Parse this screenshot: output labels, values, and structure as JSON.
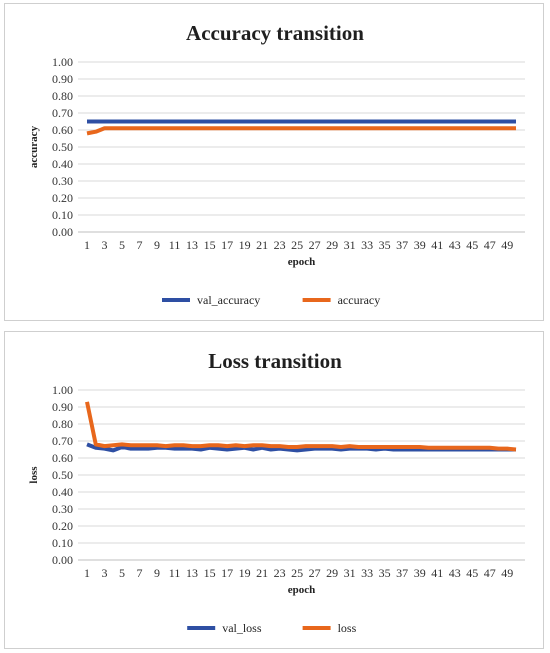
{
  "chart_data": [
    {
      "type": "line",
      "title": "Accuracy transition",
      "xlabel": "epoch",
      "ylabel": "accuracy",
      "ylim": [
        0,
        1
      ],
      "yticks": [
        "0.00",
        "0.10",
        "0.20",
        "0.30",
        "0.40",
        "0.50",
        "0.60",
        "0.70",
        "0.80",
        "0.90",
        "1.00"
      ],
      "x": [
        1,
        2,
        3,
        4,
        5,
        6,
        7,
        8,
        9,
        10,
        11,
        12,
        13,
        14,
        15,
        16,
        17,
        18,
        19,
        20,
        21,
        22,
        23,
        24,
        25,
        26,
        27,
        28,
        29,
        30,
        31,
        32,
        33,
        34,
        35,
        36,
        37,
        38,
        39,
        40,
        41,
        42,
        43,
        44,
        45,
        46,
        47,
        48,
        49,
        50
      ],
      "xticks": [
        "1",
        "3",
        "5",
        "7",
        "9",
        "11",
        "13",
        "15",
        "17",
        "19",
        "21",
        "23",
        "25",
        "27",
        "29",
        "31",
        "33",
        "35",
        "37",
        "39",
        "41",
        "43",
        "45",
        "47",
        "49"
      ],
      "grid": true,
      "legend": "bottom",
      "series": [
        {
          "name": "val_accuracy",
          "color": "#2e4fa3",
          "values": [
            0.65,
            0.65,
            0.65,
            0.65,
            0.65,
            0.65,
            0.65,
            0.65,
            0.65,
            0.65,
            0.65,
            0.65,
            0.65,
            0.65,
            0.65,
            0.65,
            0.65,
            0.65,
            0.65,
            0.65,
            0.65,
            0.65,
            0.65,
            0.65,
            0.65,
            0.65,
            0.65,
            0.65,
            0.65,
            0.65,
            0.65,
            0.65,
            0.65,
            0.65,
            0.65,
            0.65,
            0.65,
            0.65,
            0.65,
            0.65,
            0.65,
            0.65,
            0.65,
            0.65,
            0.65,
            0.65,
            0.65,
            0.65,
            0.65,
            0.65
          ]
        },
        {
          "name": "accuracy",
          "color": "#e8671c",
          "values": [
            0.58,
            0.59,
            0.61,
            0.61,
            0.61,
            0.61,
            0.61,
            0.61,
            0.61,
            0.61,
            0.61,
            0.61,
            0.61,
            0.61,
            0.61,
            0.61,
            0.61,
            0.61,
            0.61,
            0.61,
            0.61,
            0.61,
            0.61,
            0.61,
            0.61,
            0.61,
            0.61,
            0.61,
            0.61,
            0.61,
            0.61,
            0.61,
            0.61,
            0.61,
            0.61,
            0.61,
            0.61,
            0.61,
            0.61,
            0.61,
            0.61,
            0.61,
            0.61,
            0.61,
            0.61,
            0.61,
            0.61,
            0.61,
            0.61,
            0.61
          ]
        }
      ]
    },
    {
      "type": "line",
      "title": "Loss transition",
      "xlabel": "epoch",
      "ylabel": "loss",
      "ylim": [
        0,
        1
      ],
      "yticks": [
        "0.00",
        "0.10",
        "0.20",
        "0.30",
        "0.40",
        "0.50",
        "0.60",
        "0.70",
        "0.80",
        "0.90",
        "1.00"
      ],
      "x": [
        1,
        2,
        3,
        4,
        5,
        6,
        7,
        8,
        9,
        10,
        11,
        12,
        13,
        14,
        15,
        16,
        17,
        18,
        19,
        20,
        21,
        22,
        23,
        24,
        25,
        26,
        27,
        28,
        29,
        30,
        31,
        32,
        33,
        34,
        35,
        36,
        37,
        38,
        39,
        40,
        41,
        42,
        43,
        44,
        45,
        46,
        47,
        48,
        49,
        50
      ],
      "xticks": [
        "1",
        "3",
        "5",
        "7",
        "9",
        "11",
        "13",
        "15",
        "17",
        "19",
        "21",
        "23",
        "25",
        "27",
        "29",
        "31",
        "33",
        "35",
        "37",
        "39",
        "41",
        "43",
        "45",
        "47",
        "49"
      ],
      "grid": true,
      "legend": "bottom",
      "series": [
        {
          "name": "val_loss",
          "color": "#2e4fa3",
          "values": [
            0.68,
            0.66,
            0.655,
            0.645,
            0.665,
            0.655,
            0.655,
            0.655,
            0.66,
            0.66,
            0.655,
            0.655,
            0.655,
            0.65,
            0.66,
            0.655,
            0.65,
            0.655,
            0.66,
            0.65,
            0.66,
            0.65,
            0.655,
            0.65,
            0.645,
            0.65,
            0.655,
            0.655,
            0.655,
            0.65,
            0.655,
            0.655,
            0.655,
            0.65,
            0.655,
            0.65,
            0.65,
            0.65,
            0.65,
            0.65,
            0.65,
            0.65,
            0.65,
            0.65,
            0.65,
            0.65,
            0.65,
            0.65,
            0.65,
            0.65
          ]
        },
        {
          "name": "loss",
          "color": "#e8671c",
          "values": [
            0.93,
            0.68,
            0.67,
            0.675,
            0.68,
            0.675,
            0.675,
            0.675,
            0.675,
            0.67,
            0.675,
            0.675,
            0.67,
            0.67,
            0.675,
            0.675,
            0.67,
            0.675,
            0.67,
            0.675,
            0.675,
            0.67,
            0.67,
            0.665,
            0.665,
            0.67,
            0.67,
            0.67,
            0.67,
            0.665,
            0.67,
            0.665,
            0.665,
            0.665,
            0.665,
            0.665,
            0.665,
            0.665,
            0.665,
            0.66,
            0.66,
            0.66,
            0.66,
            0.66,
            0.66,
            0.66,
            0.66,
            0.655,
            0.655,
            0.65
          ]
        }
      ]
    }
  ]
}
